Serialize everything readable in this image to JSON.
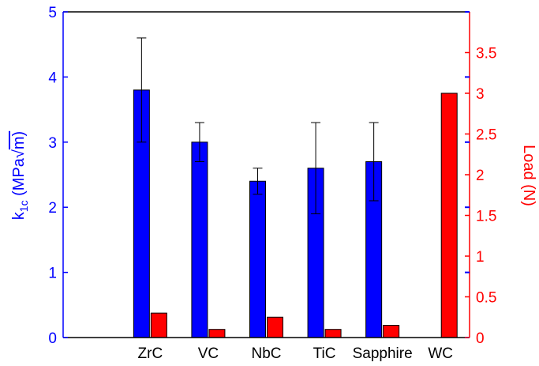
{
  "chart_data": {
    "type": "bar",
    "categories": [
      "",
      "ZrC",
      "VC",
      "NbC",
      "TiC",
      "Sapphire",
      "WC"
    ],
    "series": [
      {
        "axis": "left",
        "color": "#0000ff",
        "values": [
          null,
          3.8,
          3.0,
          2.4,
          2.6,
          2.7,
          null
        ],
        "error_low": [
          null,
          3.0,
          2.7,
          2.2,
          1.9,
          2.1,
          null
        ],
        "error_high": [
          null,
          4.6,
          3.3,
          2.6,
          3.3,
          3.3,
          null
        ]
      },
      {
        "axis": "right",
        "color": "#ff0000",
        "values": [
          null,
          0.3,
          0.1,
          0.25,
          0.1,
          0.15,
          3.0
        ]
      }
    ],
    "ylabel_left_parts": [
      "k",
      "1c",
      " (MPa",
      "√",
      "m)"
    ],
    "ylabel_right": "Load (N)",
    "ylim_left": [
      0,
      5
    ],
    "ylim_right": [
      0,
      4
    ],
    "yticks_left": [
      "0",
      "1",
      "2",
      "3",
      "4",
      "5"
    ],
    "yticks_right": [
      "0",
      "0.5",
      "1",
      "1.5",
      "2",
      "2.5",
      "3",
      "3.5"
    ],
    "yticks_right_values": [
      0,
      0.5,
      1,
      1.5,
      2,
      2.5,
      3,
      3.5
    ],
    "grid": false,
    "legend": "none",
    "colors": {
      "left_axis": "#0000ff",
      "right_axis": "#ff0000",
      "frame": "#000000"
    }
  }
}
